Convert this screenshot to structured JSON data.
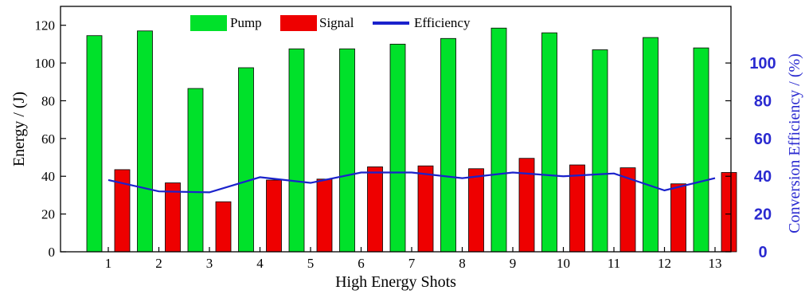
{
  "chart_data": {
    "type": "bar",
    "xlabel": "High Energy Shots",
    "ylabel": "Energy / (J)",
    "y2label": "Conversion Efficiency  / (%)",
    "categories": [
      "1",
      "2",
      "3",
      "4",
      "5",
      "6",
      "7",
      "8",
      "9",
      "10",
      "11",
      "12",
      "13"
    ],
    "ylim": [
      0,
      130
    ],
    "yticks": [
      0,
      20,
      40,
      60,
      80,
      100,
      120
    ],
    "y2lim": [
      0,
      130
    ],
    "y2ticks": [
      0,
      20,
      40,
      60,
      80,
      100
    ],
    "series": [
      {
        "name": "Pump",
        "kind": "bar",
        "axis": "left",
        "color": "#00e12a",
        "values": [
          114.5,
          117,
          86.5,
          97.5,
          107.5,
          107.5,
          110,
          113,
          118.5,
          116,
          107,
          113.5,
          108
        ]
      },
      {
        "name": "Signal",
        "kind": "bar",
        "axis": "left",
        "color": "#ee0000",
        "values": [
          43.5,
          36.5,
          26.5,
          38,
          38.5,
          45,
          45.5,
          44,
          49.5,
          46,
          44.5,
          36,
          42
        ]
      },
      {
        "name": "Efficiency",
        "kind": "line",
        "axis": "right",
        "color": "#1a22cc",
        "values": [
          38,
          32,
          31.5,
          39.5,
          36.5,
          42,
          42,
          39,
          42,
          40,
          41.5,
          32.5,
          39
        ]
      }
    ],
    "legend_position": "top-center",
    "grid": false
  }
}
